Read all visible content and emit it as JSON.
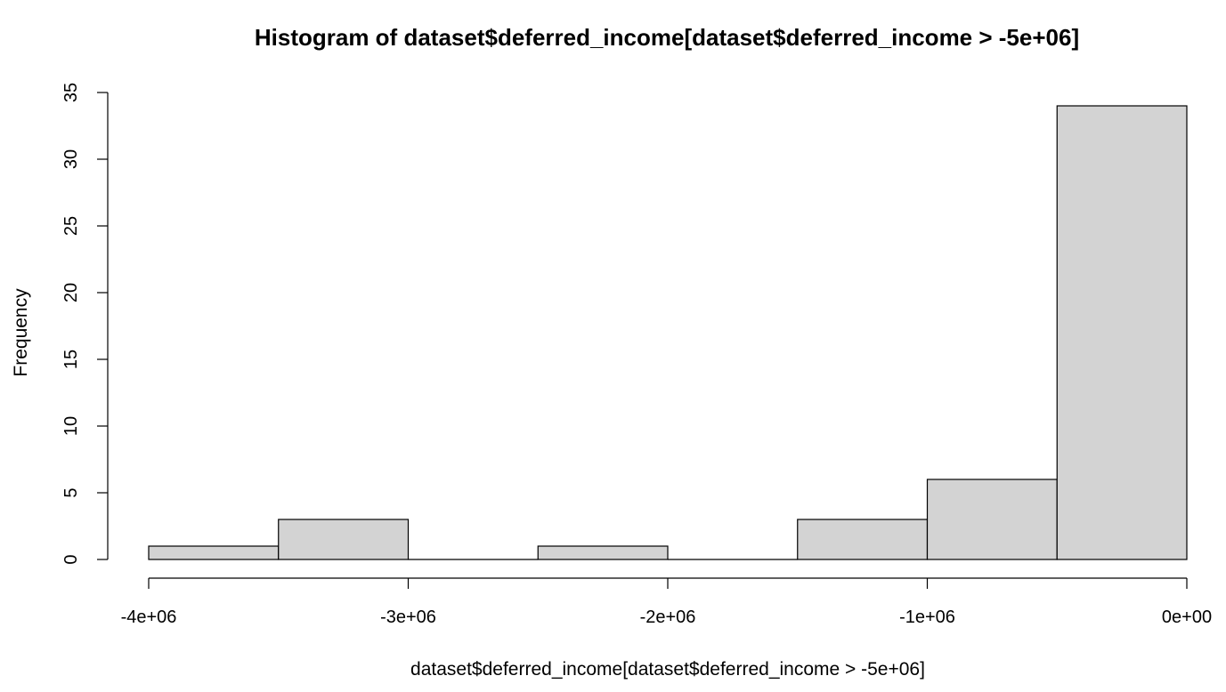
{
  "chart_data": {
    "type": "bar",
    "title": "Histogram of dataset$deferred_income[dataset$deferred_income > -5e+06]",
    "xlabel": "dataset$deferred_income[dataset$deferred_income > -5e+06]",
    "ylabel": "Frequency",
    "bins": [
      {
        "start": -4000000,
        "end": -3500000,
        "count": 1
      },
      {
        "start": -3500000,
        "end": -3000000,
        "count": 3
      },
      {
        "start": -3000000,
        "end": -2500000,
        "count": 0
      },
      {
        "start": -2500000,
        "end": -2000000,
        "count": 1
      },
      {
        "start": -2000000,
        "end": -1500000,
        "count": 0
      },
      {
        "start": -1500000,
        "end": -1000000,
        "count": 3
      },
      {
        "start": -1000000,
        "end": -500000,
        "count": 6
      },
      {
        "start": -500000,
        "end": 0,
        "count": 34
      }
    ],
    "xlim": [
      -4000000,
      0
    ],
    "ylim": [
      0,
      35
    ],
    "x_ticks": [
      {
        "value": -4000000,
        "label": "-4e+06"
      },
      {
        "value": -3000000,
        "label": "-3e+06"
      },
      {
        "value": -2000000,
        "label": "-2e+06"
      },
      {
        "value": -1000000,
        "label": "-1e+06"
      },
      {
        "value": 0,
        "label": "0e+00"
      }
    ],
    "y_ticks": [
      {
        "value": 0,
        "label": "0"
      },
      {
        "value": 5,
        "label": "5"
      },
      {
        "value": 10,
        "label": "10"
      },
      {
        "value": 15,
        "label": "15"
      },
      {
        "value": 20,
        "label": "20"
      },
      {
        "value": 25,
        "label": "25"
      },
      {
        "value": 30,
        "label": "30"
      },
      {
        "value": 35,
        "label": "35"
      }
    ],
    "bar_fill": "#d3d3d3",
    "bar_stroke": "#000000",
    "grid": false
  }
}
